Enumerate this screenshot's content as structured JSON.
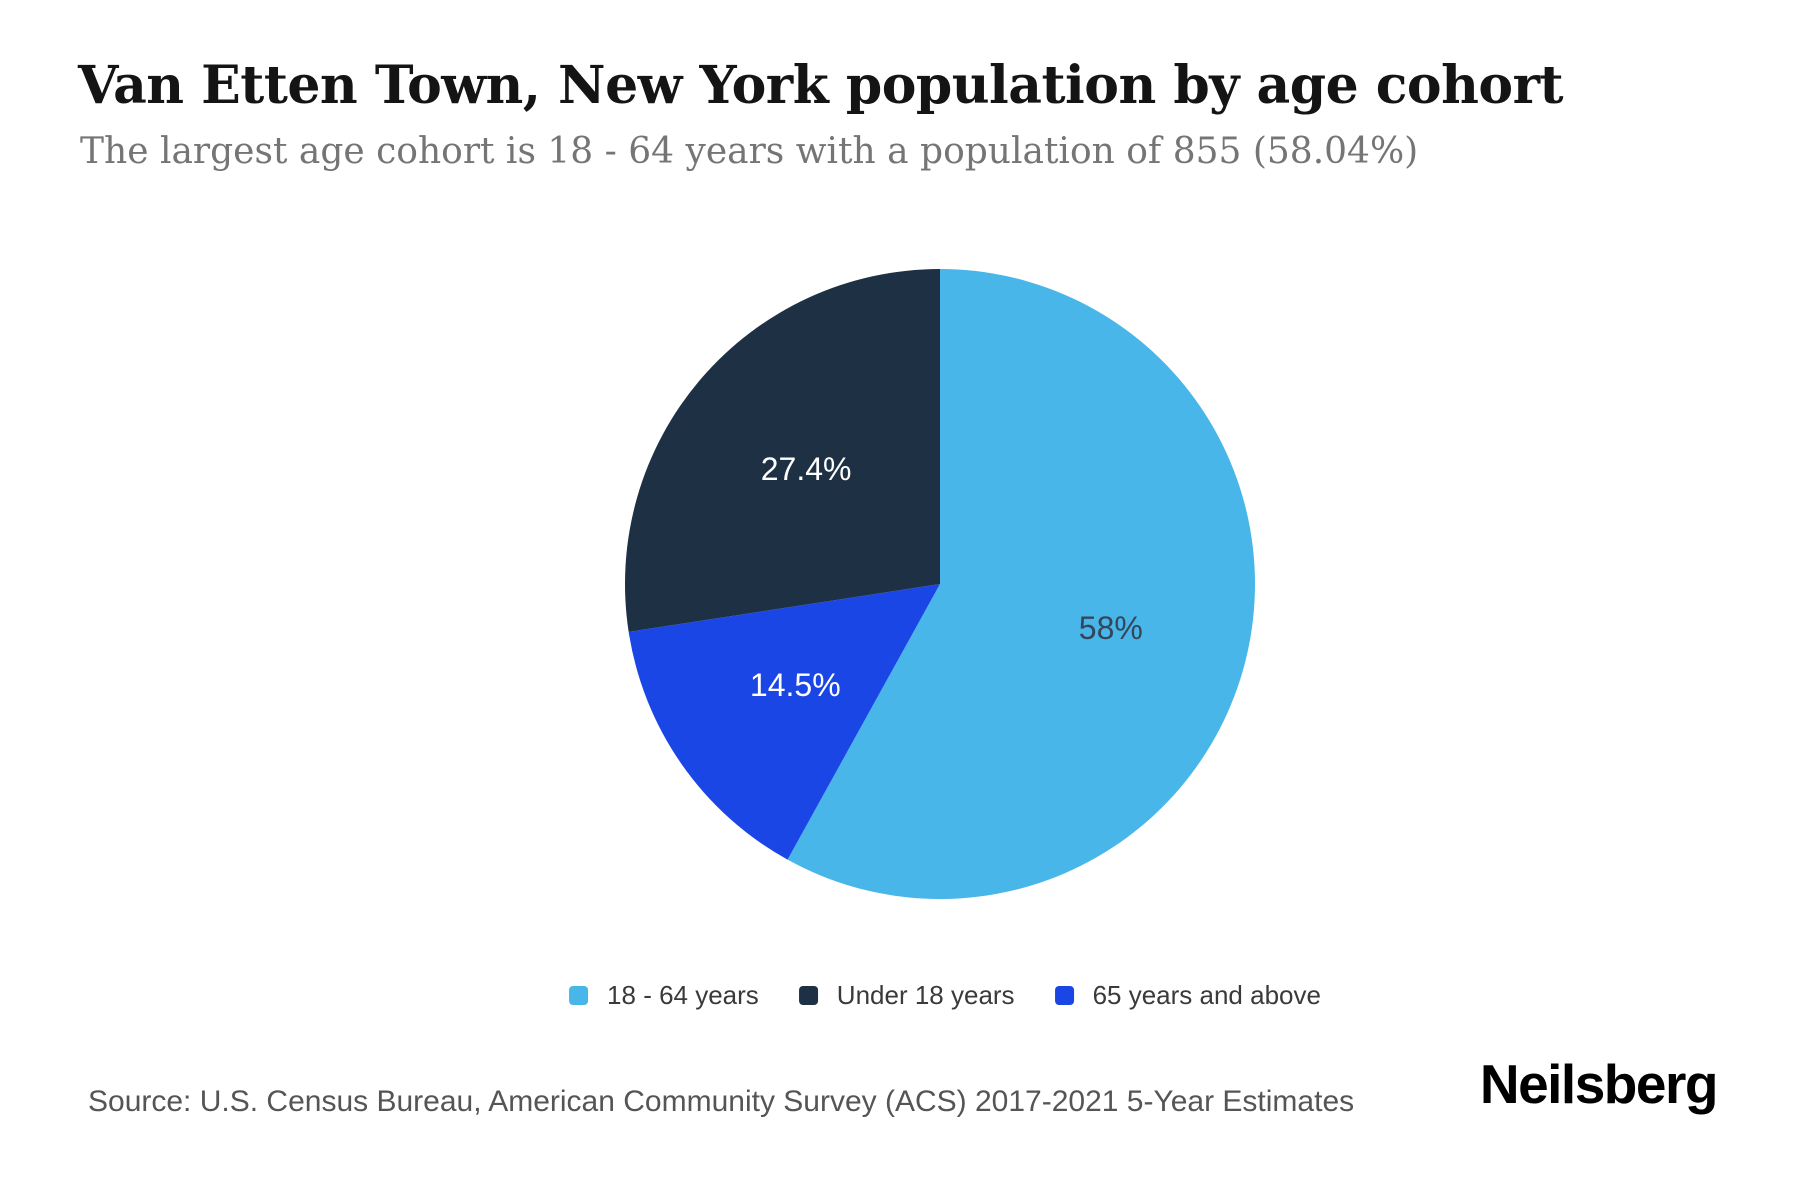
{
  "header": {
    "title": "Van Etten Town, New York population by age cohort",
    "subtitle": "The largest age cohort is 18 - 64 years with a population of 855 (58.04%)"
  },
  "chart_data": {
    "type": "pie",
    "title": "Van Etten Town, New York population by age cohort",
    "start_angle_deg": 0,
    "direction": "clockwise",
    "legend_position": "bottom",
    "slices": [
      {
        "label": "18 - 64 years",
        "value": 58.04,
        "display_pct": "58%",
        "color": "#49b6e9",
        "pct_color": "#33475a"
      },
      {
        "label": "65 years and above",
        "value": 14.53,
        "display_pct": "14.5%",
        "color": "#1b46e6",
        "pct_color": "#ffffff"
      },
      {
        "label": "Under 18 years",
        "value": 27.43,
        "display_pct": "27.4%",
        "color": "#1e3044",
        "pct_color": "#ffffff"
      }
    ],
    "legend_order": [
      0,
      2,
      1
    ],
    "largest_cohort": {
      "label": "18 - 64 years",
      "population": 855,
      "pct": "58.04%"
    }
  },
  "footer": {
    "source": "Source: U.S. Census Bureau, American Community Survey (ACS) 2017-2021 5-Year Estimates",
    "brand": "Neilsberg"
  }
}
